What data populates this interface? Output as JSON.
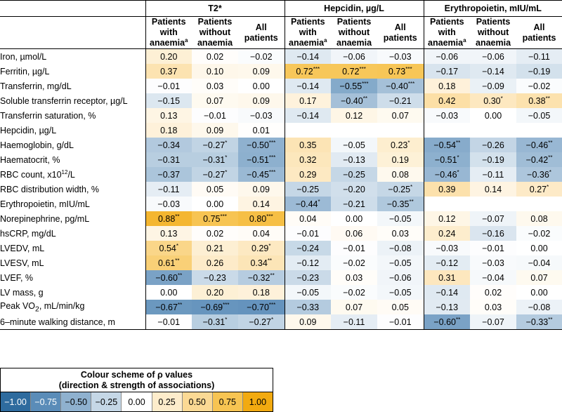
{
  "header": {
    "groups": [
      "T2*",
      "Hepcidin, µg/L",
      "Erythropoietin, mIU/mL"
    ],
    "subcolumns": [
      {
        "line1": "Patients",
        "line2": "with",
        "line3": "anaemia",
        "sup": "a"
      },
      {
        "line1": "Patients",
        "line2": "without",
        "line3": "anaemia",
        "sup": ""
      },
      {
        "line1": "All",
        "line2": "patients",
        "line3": "",
        "sup": ""
      }
    ]
  },
  "rows": [
    {
      "label": "Iron, µmol/L",
      "cells": [
        [
          "0.20",
          ""
        ],
        [
          "0.02",
          ""
        ],
        [
          "−0.02",
          ""
        ],
        [
          "−0.14",
          ""
        ],
        [
          "−0.06",
          ""
        ],
        [
          "−0.03",
          ""
        ],
        [
          "−0.06",
          ""
        ],
        [
          "−0.06",
          ""
        ],
        [
          "−0.11",
          ""
        ]
      ]
    },
    {
      "label": "Ferritin, µg/L",
      "cells": [
        [
          "0.37",
          ""
        ],
        [
          "0.10",
          ""
        ],
        [
          "0.09",
          ""
        ],
        [
          "0.72",
          "***"
        ],
        [
          "0.72",
          "***"
        ],
        [
          "0.73",
          "***"
        ],
        [
          "−0.17",
          ""
        ],
        [
          "−0.14",
          ""
        ],
        [
          "−0.19",
          ""
        ]
      ]
    },
    {
      "label": "Transferrin, mg/dL",
      "cells": [
        [
          "−0.01",
          ""
        ],
        [
          "0.03",
          ""
        ],
        [
          "0.00",
          ""
        ],
        [
          "−0.14",
          ""
        ],
        [
          "−0.55",
          "***"
        ],
        [
          "−0.40",
          "***"
        ],
        [
          "0.18",
          ""
        ],
        [
          "−0.09",
          ""
        ],
        [
          "−0.02",
          ""
        ]
      ]
    },
    {
      "label": "Soluble transferrin receptor, µg/L",
      "cells": [
        [
          "−0.15",
          ""
        ],
        [
          "0.07",
          ""
        ],
        [
          "0.09",
          ""
        ],
        [
          "0.17",
          ""
        ],
        [
          "−0.40",
          "**"
        ],
        [
          "−0.21",
          ""
        ],
        [
          "0.42",
          ""
        ],
        [
          "0.30",
          "*"
        ],
        [
          "0.38",
          "**"
        ]
      ]
    },
    {
      "label": "Transferrin saturation, %",
      "cells": [
        [
          "0.13",
          ""
        ],
        [
          "−0.01",
          ""
        ],
        [
          "−0.03",
          ""
        ],
        [
          "−0.14",
          ""
        ],
        [
          "0.12",
          ""
        ],
        [
          "0.07",
          ""
        ],
        [
          "−0.03",
          ""
        ],
        [
          "0.00",
          ""
        ],
        [
          "−0.05",
          ""
        ]
      ]
    },
    {
      "label": "Hepcidin, µg/L",
      "cells": [
        [
          "0.18",
          ""
        ],
        [
          "0.09",
          ""
        ],
        [
          "0.01",
          ""
        ],
        [
          "",
          ""
        ],
        [
          "",
          ""
        ],
        [
          "",
          ""
        ],
        [
          "",
          ""
        ],
        [
          "",
          ""
        ],
        [
          "",
          ""
        ]
      ]
    },
    {
      "label": "Haemoglobin, g/dL",
      "cells": [
        [
          "−0.34",
          ""
        ],
        [
          "−0.27",
          "*"
        ],
        [
          "−0.50",
          "***"
        ],
        [
          "0.35",
          ""
        ],
        [
          "−0.05",
          ""
        ],
        [
          "0.23",
          "*"
        ],
        [
          "−0.54",
          "**"
        ],
        [
          "−0.26",
          ""
        ],
        [
          "−0.46",
          "**"
        ]
      ]
    },
    {
      "label": "Haematocrit, %",
      "cells": [
        [
          "−0.31",
          ""
        ],
        [
          "−0.31",
          "*"
        ],
        [
          "−0.51",
          "***"
        ],
        [
          "0.32",
          ""
        ],
        [
          "−0.13",
          ""
        ],
        [
          "0.19",
          ""
        ],
        [
          "−0.51",
          "*"
        ],
        [
          "−0.19",
          ""
        ],
        [
          "−0.42",
          "**"
        ]
      ]
    },
    {
      "label": "RBC count, x10",
      "sup": "12",
      "label_tail": "/L",
      "cells": [
        [
          "−0.37",
          ""
        ],
        [
          "−0.27",
          "*"
        ],
        [
          "−0.45",
          "***"
        ],
        [
          "0.29",
          ""
        ],
        [
          "−0.25",
          ""
        ],
        [
          "0.08",
          ""
        ],
        [
          "−0.46",
          "*"
        ],
        [
          "−0.11",
          ""
        ],
        [
          "−0.36",
          "*"
        ]
      ]
    },
    {
      "label": "RBC distribution width, %",
      "cells": [
        [
          "−0.11",
          ""
        ],
        [
          "0.05",
          ""
        ],
        [
          "0.09",
          ""
        ],
        [
          "−0.25",
          ""
        ],
        [
          "−0.20",
          ""
        ],
        [
          "−0.25",
          "*"
        ],
        [
          "0.39",
          ""
        ],
        [
          "0.14",
          ""
        ],
        [
          "0.27",
          "*"
        ]
      ]
    },
    {
      "label": "Erythropoietin, mIU/mL",
      "cells": [
        [
          "−0.03",
          ""
        ],
        [
          "0.00",
          ""
        ],
        [
          "0.14",
          ""
        ],
        [
          "−0.44",
          "*"
        ],
        [
          "−0.21",
          ""
        ],
        [
          "−0.35",
          "**"
        ],
        [
          "",
          ""
        ],
        [
          "",
          ""
        ],
        [
          "",
          ""
        ]
      ]
    },
    {
      "label": "Norepinephrine, pg/mL",
      "cells": [
        [
          "0.88",
          "**"
        ],
        [
          "0.75",
          "***"
        ],
        [
          "0.80",
          "***"
        ],
        [
          "0.04",
          ""
        ],
        [
          "0.00",
          ""
        ],
        [
          "−0.05",
          ""
        ],
        [
          "0.12",
          ""
        ],
        [
          "−0.07",
          ""
        ],
        [
          "0.08",
          ""
        ]
      ]
    },
    {
      "label": "hsCRP, mg/dL",
      "cells": [
        [
          "0.13",
          ""
        ],
        [
          "0.02",
          ""
        ],
        [
          "0.04",
          ""
        ],
        [
          "−0.01",
          ""
        ],
        [
          "0.06",
          ""
        ],
        [
          "0.03",
          ""
        ],
        [
          "0.24",
          ""
        ],
        [
          "−0.16",
          ""
        ],
        [
          "−0.02",
          ""
        ]
      ]
    },
    {
      "label": "LVEDV, mL",
      "cells": [
        [
          "0.54",
          "*"
        ],
        [
          "0.21",
          ""
        ],
        [
          "0.29",
          "*"
        ],
        [
          "−0.24",
          ""
        ],
        [
          "−0.01",
          ""
        ],
        [
          "−0.08",
          ""
        ],
        [
          "−0.03",
          ""
        ],
        [
          "−0.01",
          ""
        ],
        [
          "0.00",
          ""
        ]
      ]
    },
    {
      "label": "LVESV, mL",
      "cells": [
        [
          "0.61",
          "**"
        ],
        [
          "0.26",
          ""
        ],
        [
          "0.34",
          "**"
        ],
        [
          "−0.12",
          ""
        ],
        [
          "−0.02",
          ""
        ],
        [
          "−0.05",
          ""
        ],
        [
          "−0.12",
          ""
        ],
        [
          "−0.03",
          ""
        ],
        [
          "−0.04",
          ""
        ]
      ]
    },
    {
      "label": "LVEF, %",
      "cells": [
        [
          "−0.60",
          "**"
        ],
        [
          "−0.23",
          ""
        ],
        [
          "−0.32",
          "**"
        ],
        [
          "−0.23",
          ""
        ],
        [
          "0.03",
          ""
        ],
        [
          "−0.06",
          ""
        ],
        [
          "0.31",
          ""
        ],
        [
          "−0.04",
          ""
        ],
        [
          "0.07",
          ""
        ]
      ]
    },
    {
      "label": "LV mass, g",
      "cells": [
        [
          "0.00",
          ""
        ],
        [
          "0.20",
          ""
        ],
        [
          "0.18",
          ""
        ],
        [
          "−0.05",
          ""
        ],
        [
          "−0.02",
          ""
        ],
        [
          "−0.05",
          ""
        ],
        [
          "−0.14",
          ""
        ],
        [
          "0.02",
          ""
        ],
        [
          "0.00",
          ""
        ]
      ]
    },
    {
      "label": "Peak VO",
      "sub": "2",
      "label_tail": ", mL/min/kg",
      "cells": [
        [
          "−0.67",
          "**"
        ],
        [
          "−0.69",
          "***"
        ],
        [
          "−0.70",
          "***"
        ],
        [
          "−0.33",
          ""
        ],
        [
          "0.07",
          ""
        ],
        [
          "0.05",
          ""
        ],
        [
          "−0.13",
          ""
        ],
        [
          "0.03",
          ""
        ],
        [
          "−0.08",
          ""
        ]
      ]
    },
    {
      "label": "6–minute walking distance, m",
      "cells": [
        [
          "−0.01",
          ""
        ],
        [
          "−0.31",
          "*"
        ],
        [
          "−0.27",
          "*"
        ],
        [
          "0.09",
          ""
        ],
        [
          "−0.11",
          ""
        ],
        [
          "−0.01",
          ""
        ],
        [
          "−0.60",
          "**"
        ],
        [
          "−0.07",
          ""
        ],
        [
          "−0.33",
          "**"
        ]
      ]
    }
  ],
  "legend": {
    "title_line1": "Colour scheme of ρ values",
    "title_line2": "(direction & strength of associations)",
    "stops": [
      {
        "label": "−1.00",
        "value": -1.0,
        "color": "#2e6b9e",
        "text": "#ffffff"
      },
      {
        "label": "−0.75",
        "value": -0.75,
        "color": "#5a8cb8",
        "text": "#ffffff"
      },
      {
        "label": "−0.50",
        "value": -0.5,
        "color": "#8fb1cf",
        "text": "#000000"
      },
      {
        "label": "−0.25",
        "value": -0.25,
        "color": "#c5d7e6",
        "text": "#000000"
      },
      {
        "label": "0.00",
        "value": 0.0,
        "color": "#ffffff",
        "text": "#000000"
      },
      {
        "label": "0.25",
        "value": 0.25,
        "color": "#fdeccb",
        "text": "#000000"
      },
      {
        "label": "0.50",
        "value": 0.5,
        "color": "#fbd994",
        "text": "#000000"
      },
      {
        "label": "0.75",
        "value": 0.75,
        "color": "#f7c452",
        "text": "#000000"
      },
      {
        "label": "1.00",
        "value": 1.0,
        "color": "#f2aa10",
        "text": "#000000"
      }
    ]
  }
}
